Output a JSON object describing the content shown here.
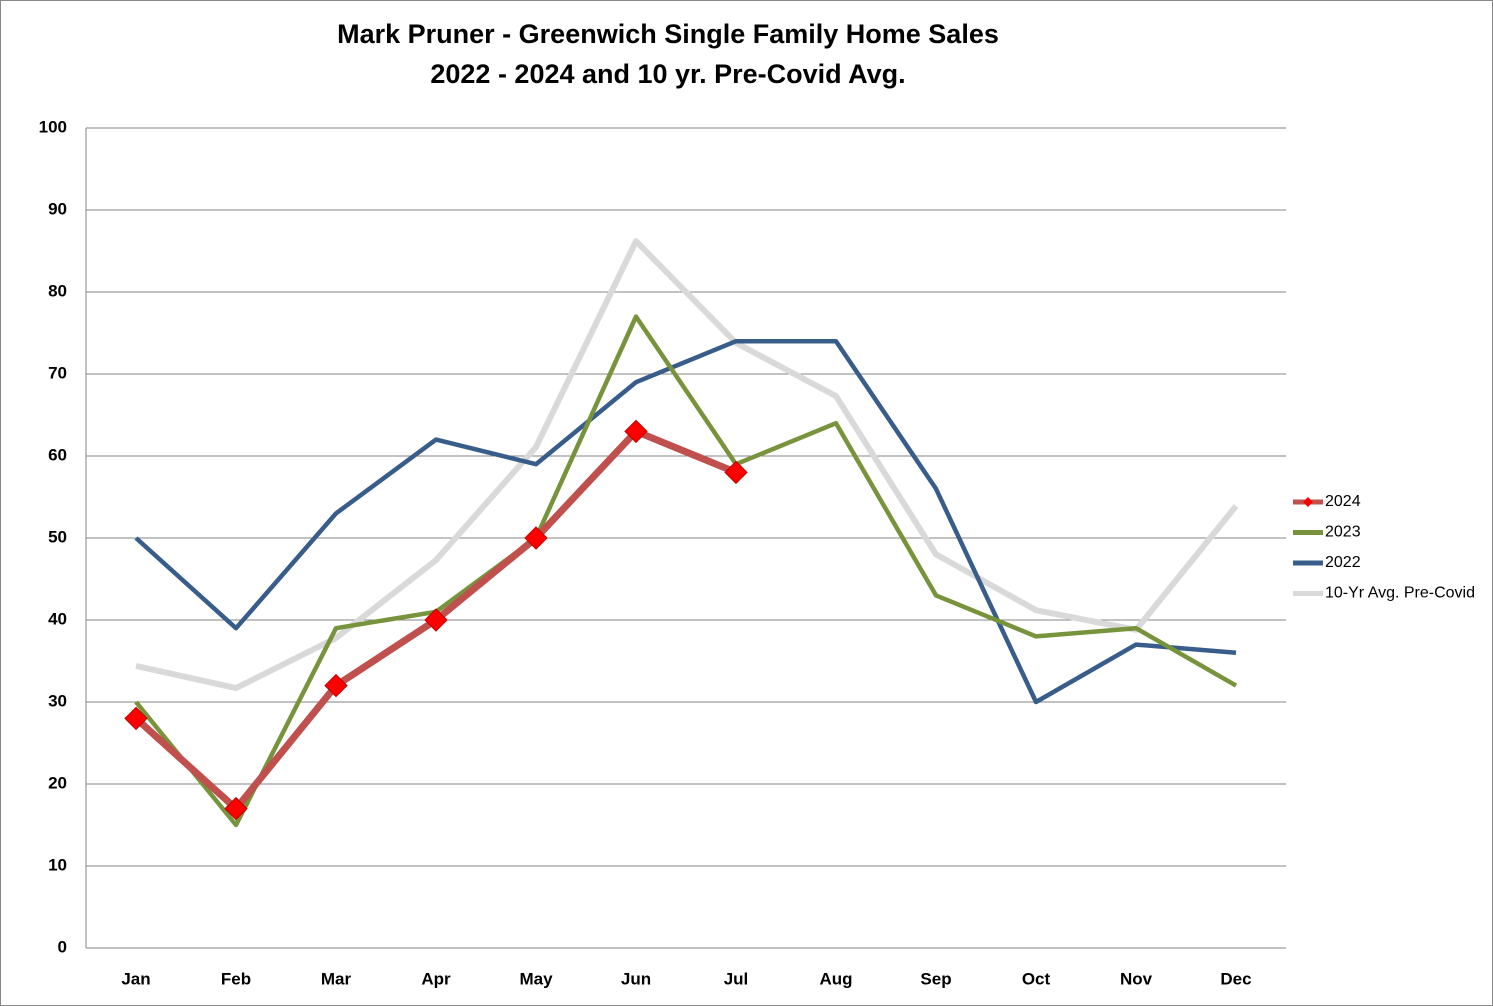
{
  "chart_data": {
    "type": "line",
    "title": "Mark Pruner - Greenwich Single Family Home Sales",
    "subtitle": "2022 - 2024 and 10 yr. Pre-Covid Avg.",
    "categories": [
      "Jan",
      "Feb",
      "Mar",
      "Apr",
      "May",
      "Jun",
      "Jul",
      "Aug",
      "Sep",
      "Oct",
      "Nov",
      "Dec"
    ],
    "series": [
      {
        "name": "2024",
        "color": "#c0504d",
        "marker": "diamond",
        "values": [
          28,
          17,
          32,
          40,
          50,
          63,
          58,
          null,
          null,
          null,
          null,
          null
        ]
      },
      {
        "name": "2023",
        "color": "#77933c",
        "values": [
          30,
          15,
          39,
          41,
          50,
          77,
          59,
          64,
          43,
          38,
          39,
          32
        ]
      },
      {
        "name": "2022",
        "color": "#385d8a",
        "values": [
          50,
          39,
          53,
          62,
          59,
          69,
          74,
          74,
          56,
          30,
          37,
          36
        ]
      },
      {
        "name": "10-Yr Avg. Pre-Covid",
        "color": "#d9d9d9",
        "values": [
          34.4,
          31.7,
          37.8,
          47.3,
          61.1,
          86.2,
          73.8,
          67.3,
          48.0,
          41.2,
          38.8,
          53.9
        ]
      }
    ],
    "ylim": [
      0,
      100
    ],
    "yticks": [
      0,
      10,
      20,
      30,
      40,
      50,
      60,
      70,
      80,
      90,
      100
    ],
    "grid": true,
    "legend": "right"
  }
}
